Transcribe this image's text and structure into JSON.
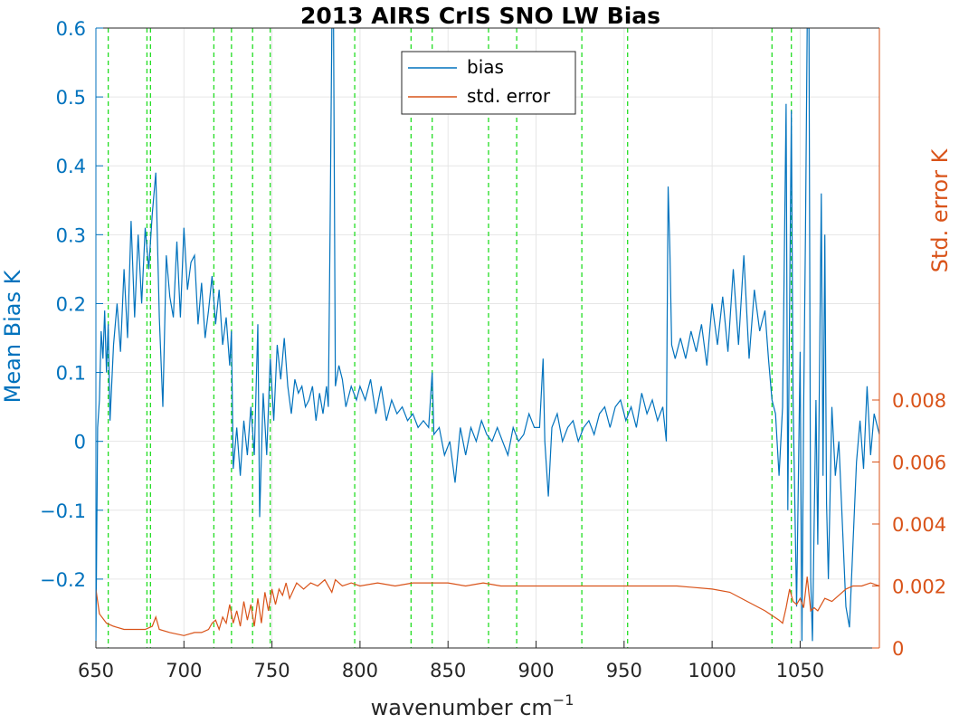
{
  "chart_data": {
    "type": "line",
    "title": "2013 AIRS CrIS SNO LW Bias",
    "xlabel": "wavenumber cm",
    "xlabel_sup": "−1",
    "ylabel_left": "Mean Bias K",
    "ylabel_right": "Std. error K",
    "xlim": [
      650,
      1095
    ],
    "ylim_left": [
      -0.3,
      0.6
    ],
    "ylim_right": [
      0,
      0.02
    ],
    "x_ticks": [
      "650",
      "700",
      "750",
      "800",
      "850",
      "900",
      "950",
      "1000",
      "1050"
    ],
    "x_tick_values": [
      650,
      700,
      750,
      800,
      850,
      900,
      950,
      1000,
      1050
    ],
    "y_left_ticks": [
      "0.6",
      "0.5",
      "0.4",
      "0.3",
      "0.2",
      "0.1",
      "0",
      "−0.1",
      "−0.2"
    ],
    "y_left_tick_values": [
      0.6,
      0.5,
      0.4,
      0.3,
      0.2,
      0.1,
      0,
      -0.1,
      -0.2
    ],
    "y_right_ticks": [
      "0.008",
      "0.006",
      "0.004",
      "0.002",
      "0"
    ],
    "y_right_tick_values": [
      0.008,
      0.006,
      0.004,
      0.002,
      0
    ],
    "grid": true,
    "legend_position": "top-center",
    "reference_lines_x": [
      657,
      679,
      681,
      717,
      727,
      739,
      749,
      797,
      829,
      841,
      873,
      889,
      926,
      952,
      1034,
      1045
    ],
    "reference_line_color": "#22dd22",
    "colors": {
      "bias": "#0072bd",
      "std_error": "#d95319",
      "left_axis": "#0072bd",
      "right_axis": "#d95319",
      "grid": "#e6e6e6"
    },
    "series": [
      {
        "name": "bias",
        "axis": "left",
        "points": [
          [
            650,
            -0.29
          ],
          [
            651,
            0.02
          ],
          [
            652,
            0.06
          ],
          [
            653,
            0.16
          ],
          [
            654,
            0.12
          ],
          [
            655,
            0.19
          ],
          [
            656,
            0.1
          ],
          [
            657,
            0.17
          ],
          [
            658,
            0.03
          ],
          [
            660,
            0.14
          ],
          [
            662,
            0.2
          ],
          [
            664,
            0.13
          ],
          [
            666,
            0.25
          ],
          [
            668,
            0.15
          ],
          [
            670,
            0.32
          ],
          [
            672,
            0.18
          ],
          [
            674,
            0.3
          ],
          [
            676,
            0.2
          ],
          [
            678,
            0.31
          ],
          [
            680,
            0.25
          ],
          [
            682,
            0.33
          ],
          [
            684,
            0.39
          ],
          [
            686,
            0.18
          ],
          [
            688,
            0.05
          ],
          [
            690,
            0.27
          ],
          [
            692,
            0.21
          ],
          [
            694,
            0.18
          ],
          [
            696,
            0.29
          ],
          [
            698,
            0.18
          ],
          [
            700,
            0.31
          ],
          [
            702,
            0.22
          ],
          [
            704,
            0.26
          ],
          [
            706,
            0.27
          ],
          [
            708,
            0.17
          ],
          [
            710,
            0.23
          ],
          [
            712,
            0.15
          ],
          [
            714,
            0.19
          ],
          [
            716,
            0.24
          ],
          [
            718,
            0.17
          ],
          [
            720,
            0.22
          ],
          [
            722,
            0.14
          ],
          [
            724,
            0.18
          ],
          [
            726,
            0.11
          ],
          [
            727,
            0.16
          ],
          [
            728,
            -0.04
          ],
          [
            730,
            0.02
          ],
          [
            732,
            -0.05
          ],
          [
            734,
            0.03
          ],
          [
            736,
            -0.02
          ],
          [
            738,
            0.05
          ],
          [
            740,
            -0.02
          ],
          [
            742,
            0.17
          ],
          [
            743,
            -0.11
          ],
          [
            745,
            0.07
          ],
          [
            747,
            -0.02
          ],
          [
            749,
            0.12
          ],
          [
            751,
            0.03
          ],
          [
            753,
            0.14
          ],
          [
            755,
            0.09
          ],
          [
            757,
            0.15
          ],
          [
            759,
            0.08
          ],
          [
            761,
            0.04
          ],
          [
            763,
            0.09
          ],
          [
            765,
            0.07
          ],
          [
            767,
            0.08
          ],
          [
            769,
            0.05
          ],
          [
            771,
            0.06
          ],
          [
            773,
            0.08
          ],
          [
            775,
            0.03
          ],
          [
            777,
            0.07
          ],
          [
            779,
            0.04
          ],
          [
            781,
            0.08
          ],
          [
            782,
            0.05
          ],
          [
            783,
            0.3
          ],
          [
            784,
            0.6
          ],
          [
            785,
            0.6
          ],
          [
            786,
            0.08
          ],
          [
            788,
            0.11
          ],
          [
            790,
            0.09
          ],
          [
            792,
            0.05
          ],
          [
            795,
            0.08
          ],
          [
            798,
            0.06
          ],
          [
            800,
            0.08
          ],
          [
            803,
            0.06
          ],
          [
            806,
            0.09
          ],
          [
            809,
            0.04
          ],
          [
            812,
            0.08
          ],
          [
            815,
            0.03
          ],
          [
            818,
            0.06
          ],
          [
            821,
            0.04
          ],
          [
            824,
            0.05
          ],
          [
            827,
            0.03
          ],
          [
            830,
            0.04
          ],
          [
            833,
            0.02
          ],
          [
            836,
            0.03
          ],
          [
            839,
            0.02
          ],
          [
            841,
            0.1
          ],
          [
            842,
            0.01
          ],
          [
            845,
            0.02
          ],
          [
            848,
            -0.02
          ],
          [
            851,
            0.0
          ],
          [
            854,
            -0.06
          ],
          [
            857,
            0.02
          ],
          [
            860,
            -0.02
          ],
          [
            863,
            0.02
          ],
          [
            866,
            0.0
          ],
          [
            869,
            0.03
          ],
          [
            872,
            0.01
          ],
          [
            875,
            0.0
          ],
          [
            878,
            0.02
          ],
          [
            881,
            0.0
          ],
          [
            884,
            -0.02
          ],
          [
            887,
            0.02
          ],
          [
            890,
            0.0
          ],
          [
            893,
            0.01
          ],
          [
            896,
            0.04
          ],
          [
            899,
            0.02
          ],
          [
            902,
            0.02
          ],
          [
            904,
            0.12
          ],
          [
            905,
            0.0
          ],
          [
            907,
            -0.08
          ],
          [
            909,
            0.02
          ],
          [
            912,
            0.04
          ],
          [
            915,
            0.0
          ],
          [
            918,
            0.02
          ],
          [
            921,
            0.03
          ],
          [
            924,
            0.0
          ],
          [
            927,
            0.02
          ],
          [
            930,
            0.03
          ],
          [
            933,
            0.01
          ],
          [
            936,
            0.04
          ],
          [
            939,
            0.05
          ],
          [
            942,
            0.02
          ],
          [
            945,
            0.05
          ],
          [
            948,
            0.06
          ],
          [
            951,
            0.03
          ],
          [
            954,
            0.05
          ],
          [
            957,
            0.02
          ],
          [
            960,
            0.07
          ],
          [
            963,
            0.04
          ],
          [
            966,
            0.06
          ],
          [
            969,
            0.03
          ],
          [
            972,
            0.05
          ],
          [
            974,
            0.0
          ],
          [
            975,
            0.37
          ],
          [
            976,
            0.28
          ],
          [
            977,
            0.14
          ],
          [
            979,
            0.12
          ],
          [
            982,
            0.15
          ],
          [
            985,
            0.12
          ],
          [
            988,
            0.16
          ],
          [
            991,
            0.13
          ],
          [
            994,
            0.17
          ],
          [
            997,
            0.11
          ],
          [
            1000,
            0.2
          ],
          [
            1003,
            0.14
          ],
          [
            1006,
            0.21
          ],
          [
            1009,
            0.13
          ],
          [
            1012,
            0.25
          ],
          [
            1015,
            0.14
          ],
          [
            1018,
            0.27
          ],
          [
            1021,
            0.12
          ],
          [
            1024,
            0.22
          ],
          [
            1027,
            0.16
          ],
          [
            1030,
            0.19
          ],
          [
            1032,
            0.12
          ],
          [
            1034,
            0.06
          ],
          [
            1036,
            0.04
          ],
          [
            1038,
            -0.05
          ],
          [
            1040,
            0.05
          ],
          [
            1042,
            0.49
          ],
          [
            1043,
            -0.1
          ],
          [
            1045,
            0.48
          ],
          [
            1046,
            0.06
          ],
          [
            1048,
            -0.24
          ],
          [
            1050,
            0.13
          ],
          [
            1051,
            -0.29
          ],
          [
            1052,
            0.05
          ],
          [
            1053,
            0.3
          ],
          [
            1054,
            0.6
          ],
          [
            1055,
            0.6
          ],
          [
            1056,
            -0.2
          ],
          [
            1057,
            -0.29
          ],
          [
            1059,
            0.06
          ],
          [
            1060,
            -0.15
          ],
          [
            1062,
            0.36
          ],
          [
            1063,
            -0.05
          ],
          [
            1064,
            0.3
          ],
          [
            1065,
            -0.09
          ],
          [
            1066,
            -0.2
          ],
          [
            1068,
            0.05
          ],
          [
            1070,
            -0.05
          ],
          [
            1072,
            0.0
          ],
          [
            1074,
            -0.12
          ],
          [
            1076,
            -0.24
          ],
          [
            1078,
            -0.27
          ],
          [
            1080,
            -0.15
          ],
          [
            1082,
            -0.03
          ],
          [
            1084,
            0.03
          ],
          [
            1086,
            -0.04
          ],
          [
            1088,
            0.08
          ],
          [
            1090,
            -0.02
          ],
          [
            1092,
            0.04
          ],
          [
            1095,
            0.01
          ]
        ]
      },
      {
        "name": "std. error",
        "axis": "right",
        "points": [
          [
            650,
            0.0019
          ],
          [
            652,
            0.0011
          ],
          [
            656,
            0.0008
          ],
          [
            660,
            0.0007
          ],
          [
            666,
            0.0006
          ],
          [
            672,
            0.0006
          ],
          [
            678,
            0.0006
          ],
          [
            682,
            0.0007
          ],
          [
            684,
            0.001
          ],
          [
            686,
            0.0006
          ],
          [
            692,
            0.0005
          ],
          [
            700,
            0.0004
          ],
          [
            706,
            0.0005
          ],
          [
            710,
            0.0005
          ],
          [
            714,
            0.0006
          ],
          [
            716,
            0.0008
          ],
          [
            718,
            0.0009
          ],
          [
            720,
            0.0006
          ],
          [
            722,
            0.001
          ],
          [
            724,
            0.0008
          ],
          [
            726,
            0.0014
          ],
          [
            728,
            0.0008
          ],
          [
            730,
            0.0012
          ],
          [
            732,
            0.0007
          ],
          [
            734,
            0.0015
          ],
          [
            736,
            0.0009
          ],
          [
            738,
            0.0014
          ],
          [
            740,
            0.0007
          ],
          [
            742,
            0.0016
          ],
          [
            744,
            0.0008
          ],
          [
            746,
            0.0018
          ],
          [
            748,
            0.0012
          ],
          [
            750,
            0.0019
          ],
          [
            752,
            0.0014
          ],
          [
            754,
            0.0019
          ],
          [
            756,
            0.0017
          ],
          [
            758,
            0.0021
          ],
          [
            760,
            0.0016
          ],
          [
            764,
            0.0021
          ],
          [
            768,
            0.0019
          ],
          [
            772,
            0.0021
          ],
          [
            776,
            0.002
          ],
          [
            780,
            0.0022
          ],
          [
            784,
            0.0018
          ],
          [
            786,
            0.0022
          ],
          [
            790,
            0.002
          ],
          [
            795,
            0.0021
          ],
          [
            800,
            0.002
          ],
          [
            810,
            0.0021
          ],
          [
            820,
            0.002
          ],
          [
            830,
            0.0021
          ],
          [
            840,
            0.0021
          ],
          [
            850,
            0.0021
          ],
          [
            860,
            0.002
          ],
          [
            870,
            0.0021
          ],
          [
            880,
            0.002
          ],
          [
            900,
            0.002
          ],
          [
            920,
            0.002
          ],
          [
            940,
            0.002
          ],
          [
            960,
            0.002
          ],
          [
            980,
            0.002
          ],
          [
            1000,
            0.0019
          ],
          [
            1010,
            0.0018
          ],
          [
            1020,
            0.0015
          ],
          [
            1030,
            0.0012
          ],
          [
            1038,
            0.0009
          ],
          [
            1040,
            0.0008
          ],
          [
            1042,
            0.0013
          ],
          [
            1044,
            0.0019
          ],
          [
            1046,
            0.0015
          ],
          [
            1048,
            0.0014
          ],
          [
            1050,
            0.0016
          ],
          [
            1052,
            0.0013
          ],
          [
            1054,
            0.0023
          ],
          [
            1056,
            0.0012
          ],
          [
            1058,
            0.0013
          ],
          [
            1060,
            0.0012
          ],
          [
            1064,
            0.0016
          ],
          [
            1068,
            0.0015
          ],
          [
            1072,
            0.0017
          ],
          [
            1076,
            0.0019
          ],
          [
            1080,
            0.002
          ],
          [
            1085,
            0.002
          ],
          [
            1090,
            0.0021
          ],
          [
            1095,
            0.002
          ]
        ]
      }
    ]
  }
}
